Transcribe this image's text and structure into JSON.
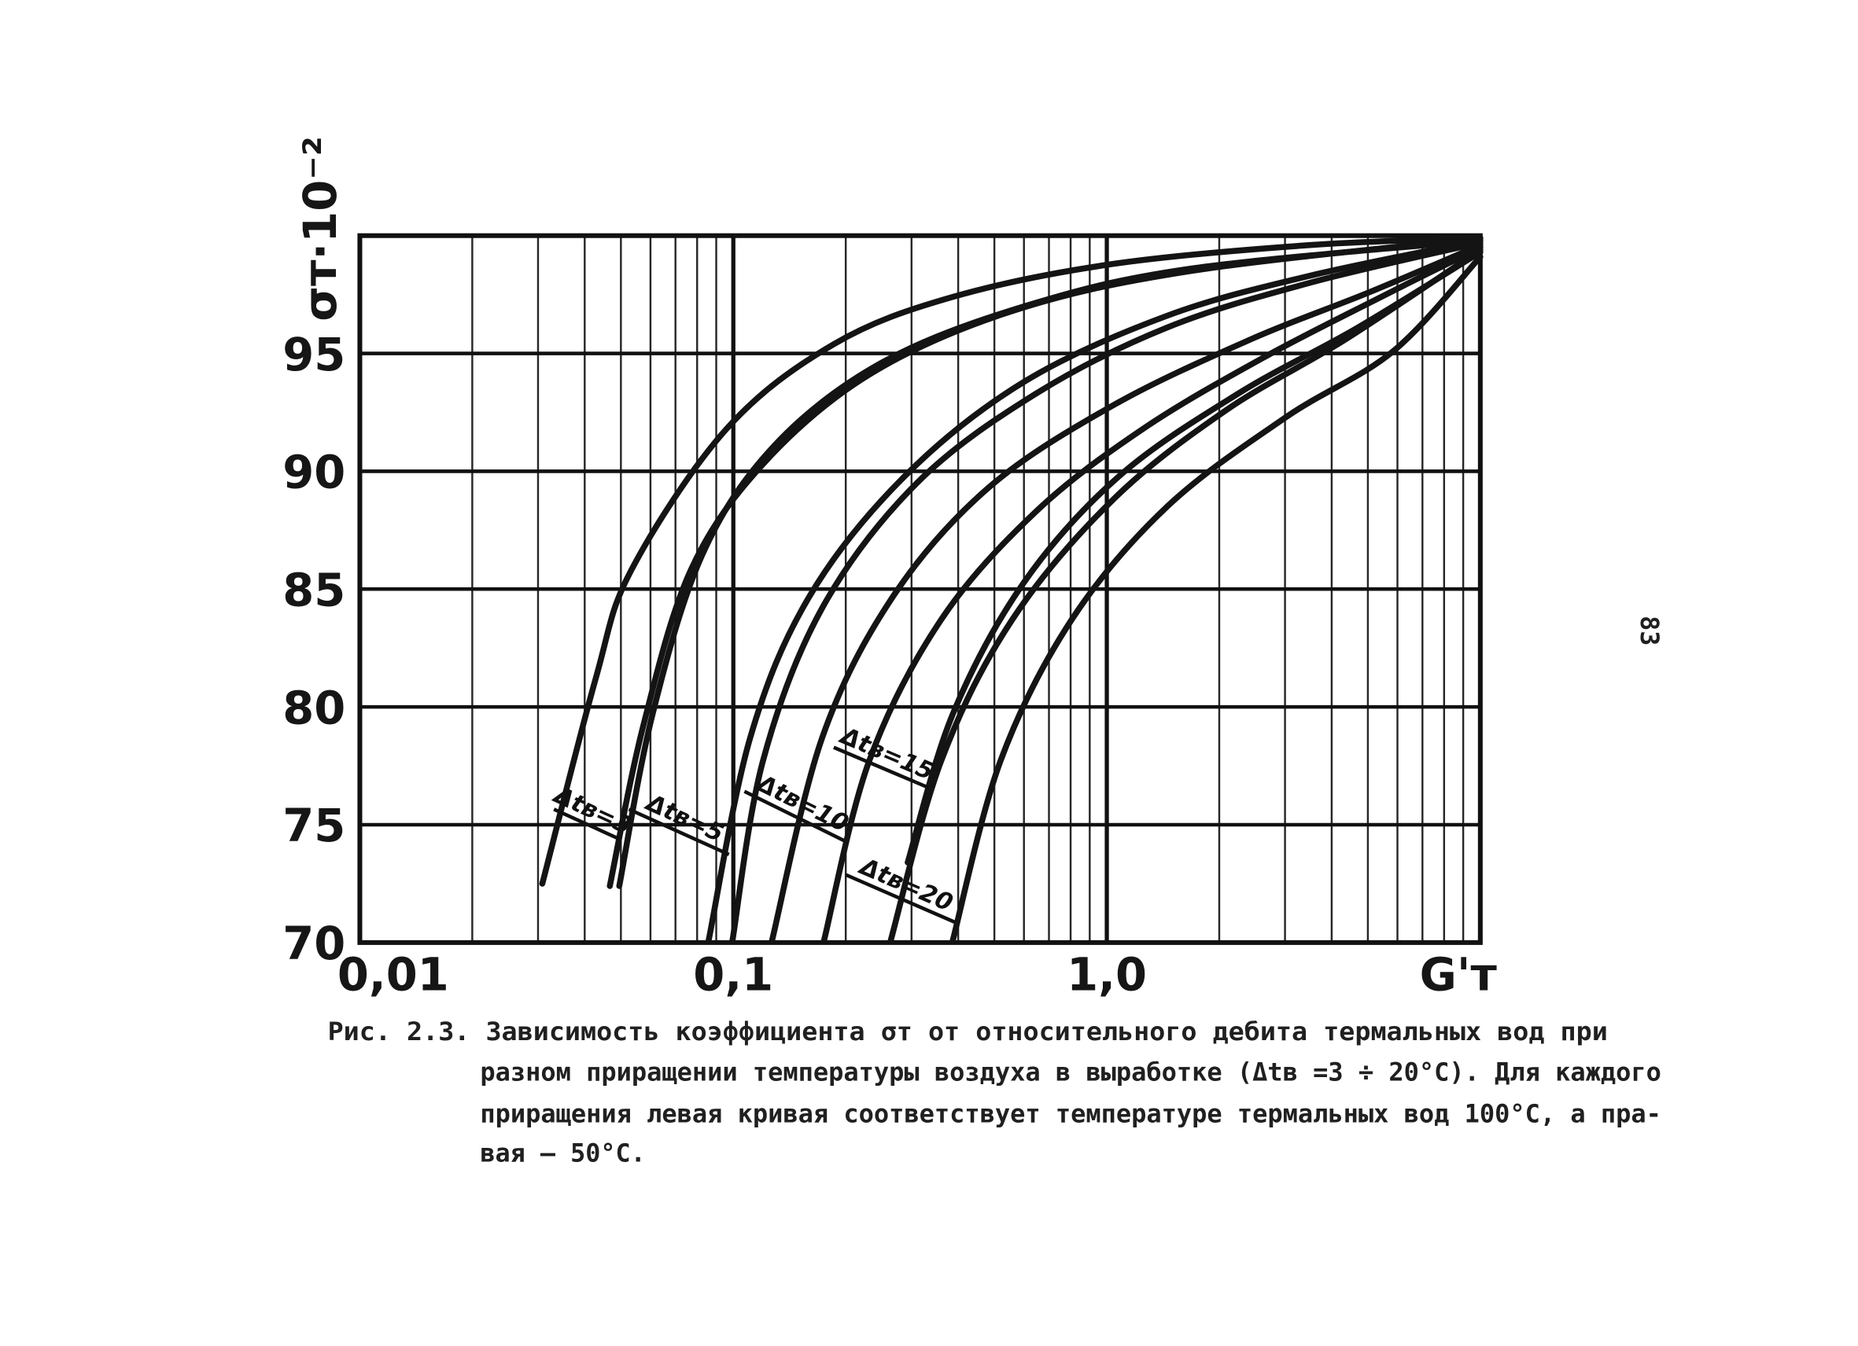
{
  "chart_data": {
    "type": "line",
    "y_label": "σт·10⁻²",
    "x_label": "G'т",
    "log_x": true,
    "xlim": [
      0.01,
      10
    ],
    "xticks": [
      {
        "value": 0.01,
        "label": "0,01"
      },
      {
        "value": 0.1,
        "label": "0,1"
      },
      {
        "value": 1,
        "label": "1,0"
      }
    ],
    "xminor": [
      0.02,
      0.03,
      0.04,
      0.05,
      0.06,
      0.07,
      0.08,
      0.09,
      0.2,
      0.3,
      0.4,
      0.5,
      0.6,
      0.7,
      0.8,
      0.9,
      2,
      3,
      4,
      5,
      6,
      7,
      8,
      9
    ],
    "ylim": [
      70,
      100
    ],
    "yticks": [
      70,
      75,
      80,
      85,
      90,
      95
    ],
    "grid": true,
    "color": "#141414",
    "series": [
      {
        "x": [
          0.0308,
          0.0428,
          0.0533,
          0.0959,
          0.186,
          0.387,
          1.04,
          3.5,
          10
        ],
        "values": [
          72.5,
          81.2,
          85.8,
          91.8,
          95.4,
          97.4,
          98.8,
          99.6,
          99.9
        ]
      },
      {
        "x": [
          0.0467,
          0.0574,
          0.0769,
          0.12,
          0.231,
          0.558,
          1.68,
          10
        ],
        "values": [
          72.4,
          79.2,
          85.8,
          90.3,
          94.1,
          96.8,
          98.5,
          99.9
        ]
      },
      {
        "x": [
          0.0495,
          0.0608,
          0.0828,
          0.129,
          0.249,
          0.601,
          1.68,
          10
        ],
        "values": [
          72.4,
          79.7,
          86.5,
          91.1,
          94.6,
          97.0,
          98.6,
          99.8
        ]
      },
      {
        "x": [
          0.0859,
          0.111,
          0.16,
          0.288,
          0.601,
          1.45,
          3.5,
          10
        ],
        "values": [
          70.1,
          78.7,
          84.7,
          89.8,
          93.8,
          96.6,
          98.3,
          99.8
        ]
      },
      {
        "x": [
          0.0995,
          0.12,
          0.173,
          0.31,
          0.647,
          1.45,
          3.5,
          10
        ],
        "values": [
          70.1,
          77.7,
          84.2,
          89.5,
          93.3,
          96.1,
          98.0,
          99.7
        ]
      },
      {
        "x": [
          0.127,
          0.173,
          0.268,
          0.482,
          1.04,
          2.43,
          5.05,
          10
        ],
        "values": [
          70.1,
          78.7,
          84.7,
          89.3,
          92.8,
          95.6,
          97.6,
          99.6
        ]
      },
      {
        "x": [
          0.175,
          0.231,
          0.36,
          0.647,
          1.25,
          2.61,
          5.43,
          10
        ],
        "values": [
          70.1,
          77.7,
          83.7,
          88.3,
          91.8,
          94.8,
          97.4,
          99.5
        ]
      },
      {
        "x": [
          0.264,
          0.36,
          0.558,
          1.04,
          2.09,
          4.36,
          10
        ],
        "values": [
          70.1,
          77.7,
          83.7,
          88.8,
          92.6,
          95.6,
          99.4
        ]
      },
      {
        "x": [
          0.293,
          0.387,
          0.601,
          1.08,
          2.25,
          4.7,
          10
        ],
        "values": [
          73.4,
          79.7,
          85.3,
          89.8,
          93.3,
          96.1,
          99.3
        ]
      },
      {
        "x": [
          0.387,
          0.519,
          0.805,
          1.45,
          3.02,
          5.85,
          10
        ],
        "values": [
          70.1,
          77.7,
          83.7,
          88.5,
          92.3,
          95.1,
          99.1
        ]
      }
    ],
    "annotations": [
      {
        "text": "Δtв=3"
      },
      {
        "text": "Δtв=5"
      },
      {
        "text": "Δtв=10"
      },
      {
        "text": "Δtв=15"
      },
      {
        "text": "Δtв=20"
      }
    ],
    "caption": [
      "Рис. 2.3. Зависимость коэффициента σт от относительного дебита термальных вод при",
      "разном приращении температуры воздуха в выработке (Δtв =3 ÷ 20°C). Для каждого",
      "приращения левая кривая соответствует температуре термальных вод 100°C, а пра-",
      "вая – 50°C."
    ],
    "page_number": "83"
  }
}
